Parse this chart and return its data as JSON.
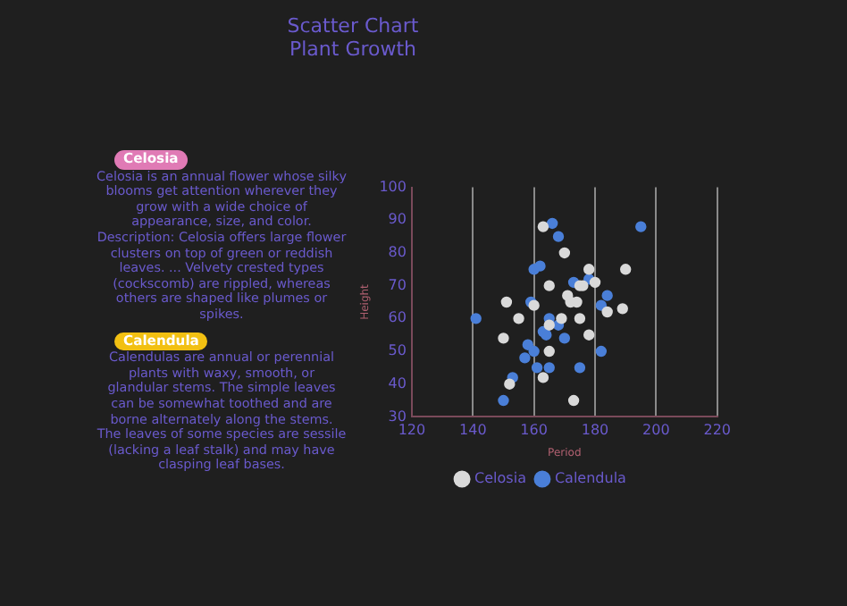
{
  "chart_data": {
    "type": "scatter",
    "title": "Scatter Chart\nPlant Growth",
    "xlabel": "Period",
    "ylabel": "Height",
    "annotations": [
      "Celosia",
      "Celosia is an annual flower whose silky blooms get attention wherever they grow with a wide choice of appearance, size, and color. Description: Celosia offers large flower clusters on top of green or reddish leaves. ... Velvety crested types (cockscomb) are rippled, whereas others are shaped like plumes or spikes.",
      "Calendula",
      "Calendulas are annual or perennial plants with waxy, smooth, or glandular stems. The simple leaves can be somewhat toothed and are borne alternately along the stems. The leaves of some species are sessile (lacking a leaf stalk) and may have clasping leaf bases."
    ],
    "xlim": [
      120,
      220
    ],
    "xticks": [
      120,
      140,
      160,
      180,
      200,
      220
    ],
    "ylim": [
      30,
      100
    ],
    "yticks": [
      30,
      40,
      50,
      60,
      70,
      80,
      90,
      100
    ],
    "grid": "x",
    "legend": "bottom",
    "marker": "circle",
    "series": [
      {
        "name": "Celosia",
        "color": "#d9d9d9",
        "x": [
          163,
          170,
          178,
          190,
          165,
          175,
          176,
          180,
          171,
          172,
          174,
          151,
          160,
          184,
          189,
          155,
          169,
          175,
          165,
          178,
          150,
          165,
          152,
          163,
          173
        ],
        "values": [
          88,
          80,
          75,
          75,
          70,
          70,
          70,
          71,
          67,
          65,
          65,
          65,
          64,
          62,
          63,
          60,
          60,
          60,
          58,
          55,
          54,
          50,
          40,
          42,
          35
        ]
      },
      {
        "name": "Calendula",
        "color": "#4a7fd8",
        "x": [
          166,
          168,
          195,
          160,
          162,
          173,
          178,
          184,
          159,
          182,
          165,
          141,
          168,
          163,
          164,
          158,
          170,
          160,
          182,
          157,
          153,
          161,
          165,
          175,
          150
        ],
        "values": [
          89,
          85,
          88,
          75,
          76,
          71,
          72,
          67,
          65,
          64,
          60,
          60,
          58,
          56,
          55,
          52,
          54,
          50,
          50,
          48,
          42,
          45,
          45,
          45,
          35
        ]
      }
    ]
  }
}
